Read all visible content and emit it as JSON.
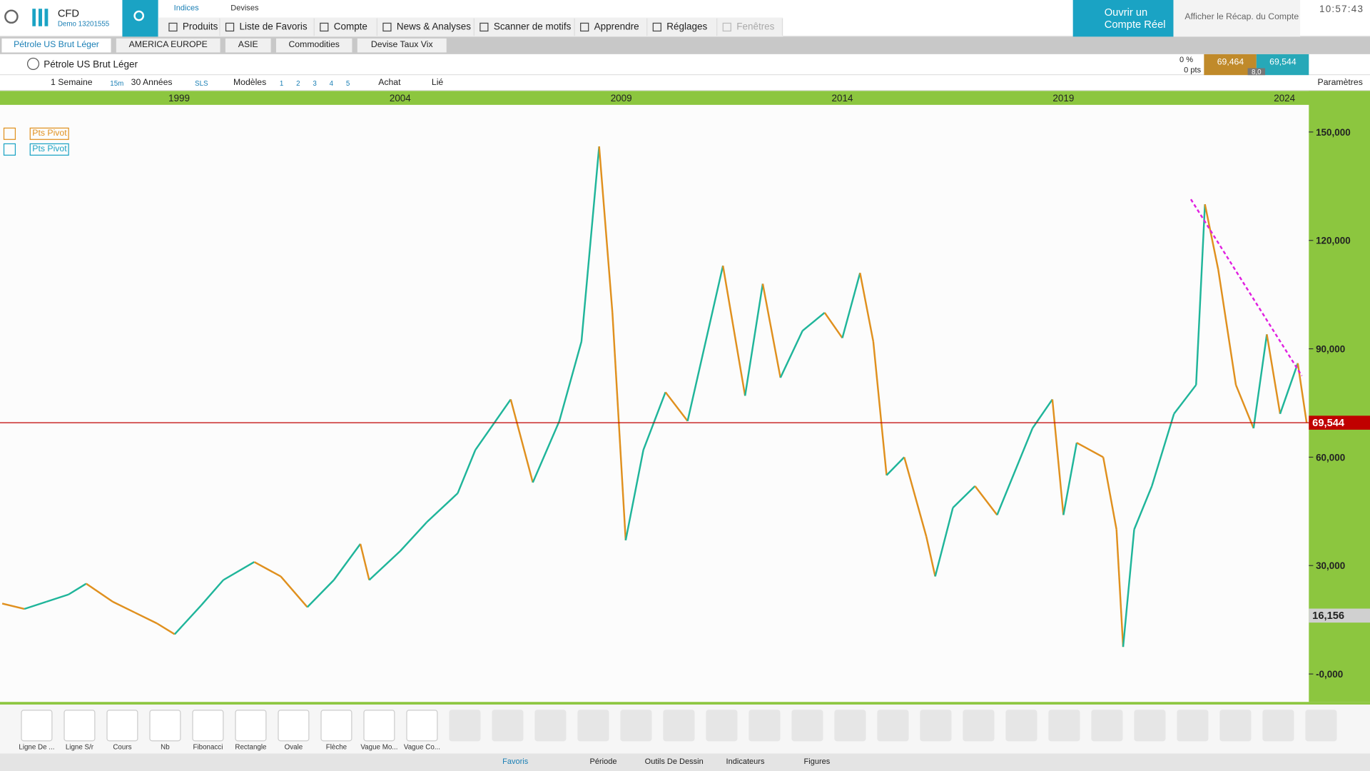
{
  "header": {
    "brand": "CFD",
    "account": "Demo 13201555",
    "tabs": [
      "Indices",
      "Devises"
    ],
    "menu": [
      "Produits",
      "Liste de Favoris",
      "Compte",
      "News & Analyses",
      "Scanner de motifs",
      "Apprendre",
      "Réglages",
      "Fenêtres"
    ],
    "cta": [
      "Ouvrir un",
      "Compte Réel"
    ],
    "recap": "Afficher le Récap. du Compte",
    "time": "10:57:43"
  },
  "watchlist_tabs": [
    "Pétrole US Brut Léger",
    "AMERICA EUROPE",
    "ASIE",
    "Commodities",
    "Devise Taux Vix"
  ],
  "instrument": {
    "name": "Pétrole US Brut Léger",
    "change": "0 %",
    "points": "0 pts",
    "bid": "69,464",
    "ask": "69,544",
    "spread": "8,0"
  },
  "toolbar": [
    "1 Semaine",
    "15m",
    "30 Années",
    "SLS",
    "Modèles",
    "1",
    "2",
    "3",
    "4",
    "5",
    "Achat",
    "Lié",
    "Paramètres"
  ],
  "indicators": [
    "Pts Pivot",
    "Pts Pivot"
  ],
  "tools": [
    "Ligne De ...",
    "Ligne S/r",
    "Cours",
    "Nb",
    "Fibonacci",
    "Rectangle",
    "Ovale",
    "Flèche",
    "Vague Mo...",
    "Vague Co..."
  ],
  "bottom_tabs": [
    "Favoris",
    "Période",
    "Outils De Dessin",
    "Indicateurs",
    "Figures"
  ],
  "chart_data": {
    "type": "line",
    "up_color": "#1fb59a",
    "down_color": "#e0901e",
    "x": [
      1995.0,
      1995.5,
      1996.0,
      1996.5,
      1996.9,
      1997.5,
      1998.0,
      1998.5,
      1998.9,
      1999.5,
      2000.0,
      2000.7,
      2001.3,
      2001.9,
      2002.5,
      2003.1,
      2003.3,
      2004.0,
      2004.6,
      2005.3,
      2005.7,
      2006.5,
      2007.0,
      2007.6,
      2008.1,
      2008.5,
      2008.8,
      2009.1,
      2009.5,
      2010.0,
      2010.5,
      2011.3,
      2011.8,
      2012.2,
      2012.6,
      2013.1,
      2013.6,
      2014.0,
      2014.4,
      2014.7,
      2015.0,
      2015.4,
      2015.9,
      2016.1,
      2016.5,
      2017.0,
      2017.5,
      2018.3,
      2018.75,
      2019.0,
      2019.3,
      2019.9,
      2020.2,
      2020.35,
      2020.6,
      2021.0,
      2021.5,
      2022.0,
      2022.2,
      2022.5,
      2022.9,
      2023.3,
      2023.6,
      2023.9,
      2024.3,
      2024.5
    ],
    "values": [
      19.5,
      18,
      20,
      22,
      25,
      20,
      17,
      14,
      11,
      19,
      26,
      31,
      27,
      18.5,
      26,
      36,
      26,
      34,
      42,
      50,
      62,
      76,
      53,
      70,
      92,
      146,
      100,
      37,
      62,
      78,
      70,
      113,
      77,
      108,
      82,
      95,
      100,
      93,
      111,
      92,
      55,
      60,
      38,
      27,
      46,
      52,
      44,
      68,
      76,
      44,
      64,
      60,
      40,
      7.5,
      40,
      52,
      72,
      80,
      130,
      112,
      80,
      68,
      94,
      72,
      86,
      69.544
    ],
    "xlim": [
      1994.95,
      2024.55
    ],
    "xticks": [
      1999,
      2004,
      2009,
      2014,
      2019,
      2024
    ],
    "ylim": [
      -7.74,
      157.5
    ],
    "yticks": [
      {
        "value": 150,
        "label": "150,000"
      },
      {
        "value": 120,
        "label": "120,000"
      },
      {
        "value": 90,
        "label": "90,000"
      },
      {
        "value": 60,
        "label": "60,000"
      },
      {
        "value": 30,
        "label": "30,000"
      },
      {
        "value": 0,
        "label": "-0,000"
      }
    ],
    "markers": [
      {
        "value": 69.544,
        "label": "69,544",
        "color": "#c00000"
      },
      {
        "value": 16.156,
        "label": "16,156",
        "color": "#d0d0d0"
      }
    ]
  }
}
